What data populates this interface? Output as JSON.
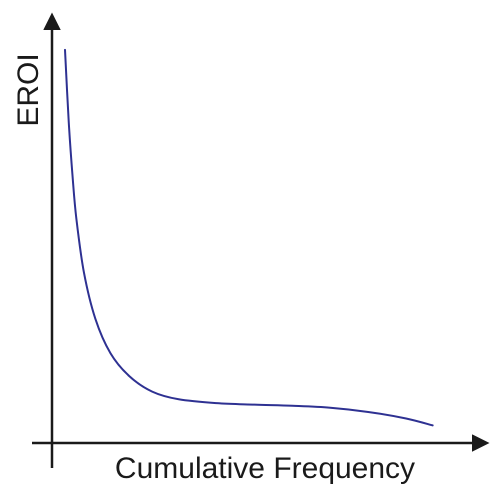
{
  "chart_data": {
    "type": "line",
    "title": "",
    "xlabel": "Cumulative Frequency",
    "ylabel": "EROI",
    "x_ticks": [],
    "y_ticks": [],
    "grid": false,
    "legend": "none",
    "xlim": [
      0,
      1
    ],
    "ylim": [
      0,
      1
    ],
    "series": [
      {
        "color": "#2e3192",
        "x": [
          0.0,
          0.01,
          0.02,
          0.03,
          0.05,
          0.08,
          0.12,
          0.17,
          0.23,
          0.3,
          0.4,
          0.5,
          0.6,
          0.7,
          0.8,
          0.9,
          0.97
        ],
        "y": [
          0.99,
          0.8,
          0.66,
          0.55,
          0.41,
          0.29,
          0.2,
          0.14,
          0.1,
          0.08,
          0.07,
          0.066,
          0.063,
          0.058,
          0.047,
          0.03,
          0.012
        ]
      }
    ],
    "colors": {
      "axis": "#1a1a1a",
      "curve": "#2e3192"
    }
  }
}
